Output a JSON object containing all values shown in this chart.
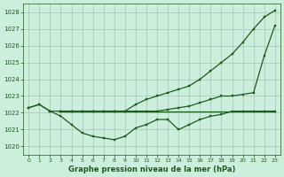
{
  "bg_color": "#cceedd",
  "grid_color": "#aaccbb",
  "line_color": "#1a5c1a",
  "title": "Graphe pression niveau de la mer (hPa)",
  "ylim": [
    1019.5,
    1028.5
  ],
  "xlim": [
    -0.5,
    23.5
  ],
  "yticks": [
    1020,
    1021,
    1022,
    1023,
    1024,
    1025,
    1026,
    1027,
    1028
  ],
  "xticks": [
    0,
    1,
    2,
    3,
    4,
    5,
    6,
    7,
    8,
    9,
    10,
    11,
    12,
    13,
    14,
    15,
    16,
    17,
    18,
    19,
    20,
    21,
    22,
    23
  ],
  "series": [
    {
      "x": [
        0,
        1,
        2,
        3,
        4,
        5,
        6,
        7,
        8,
        9,
        10,
        11,
        12,
        13,
        14,
        15,
        16,
        17,
        18,
        19,
        20,
        21,
        22,
        23
      ],
      "y": [
        1022.3,
        1022.5,
        1022.1,
        1022.1,
        1022.1,
        1022.1,
        1022.1,
        1022.1,
        1022.1,
        1022.1,
        1022.5,
        1022.8,
        1023.0,
        1023.2,
        1023.4,
        1023.6,
        1024.0,
        1024.5,
        1025.0,
        1025.5,
        1026.2,
        1027.0,
        1027.7,
        1028.1
      ],
      "marker": "s",
      "markersize": 2.0,
      "linewidth": 0.9
    },
    {
      "x": [
        3,
        4,
        5,
        6,
        7,
        8,
        9,
        10,
        11,
        12,
        13,
        14,
        15,
        16,
        17,
        18,
        19,
        20,
        21,
        22,
        23
      ],
      "y": [
        1022.1,
        1022.1,
        1022.1,
        1022.1,
        1022.1,
        1022.1,
        1022.1,
        1022.1,
        1022.1,
        1022.1,
        1022.2,
        1022.3,
        1022.4,
        1022.6,
        1022.8,
        1023.0,
        1023.0,
        1023.1,
        1023.2,
        1025.4,
        1027.2
      ],
      "marker": "s",
      "markersize": 2.0,
      "linewidth": 0.9
    },
    {
      "x": [
        3,
        23
      ],
      "y": [
        1022.1,
        1022.1
      ],
      "marker": null,
      "markersize": 0,
      "linewidth": 0.9
    },
    {
      "x": [
        0,
        1,
        2,
        3,
        4,
        5,
        6,
        7,
        8,
        9,
        10,
        11,
        12,
        13,
        14,
        15,
        16,
        17,
        18,
        19,
        20,
        21,
        22,
        23
      ],
      "y": [
        1022.3,
        1022.5,
        1022.1,
        1021.8,
        1021.3,
        1020.8,
        1020.6,
        1020.5,
        1020.4,
        1020.6,
        1021.1,
        1021.3,
        1021.6,
        1021.6,
        1021.0,
        1021.3,
        1021.6,
        1021.8,
        1021.9,
        1022.1,
        1022.1,
        1022.1,
        1022.1,
        1022.1
      ],
      "marker": "s",
      "markersize": 2.0,
      "linewidth": 0.9
    }
  ]
}
